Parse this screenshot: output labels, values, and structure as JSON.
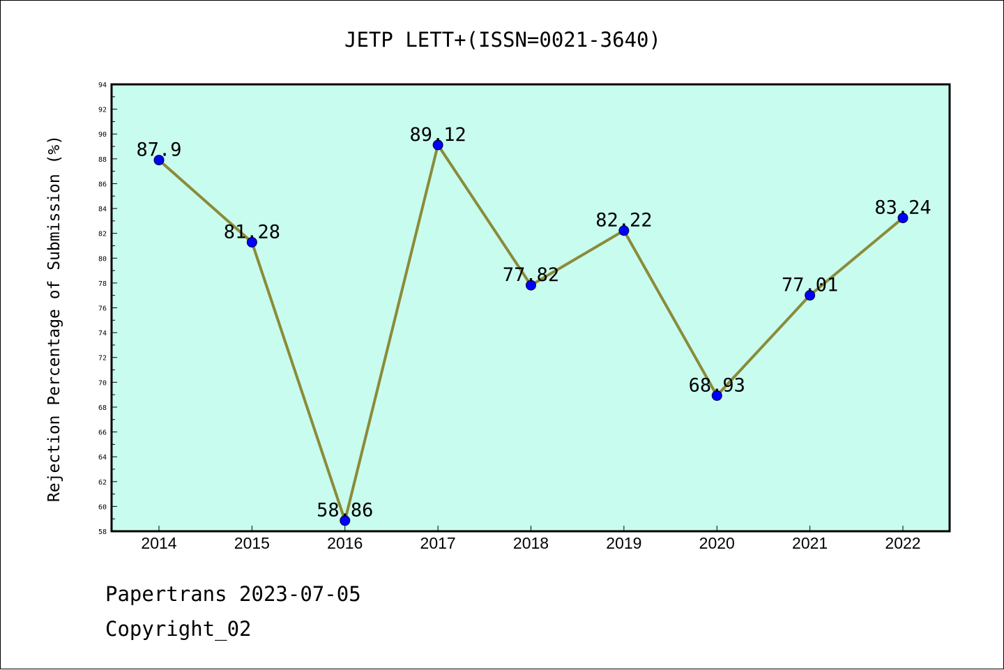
{
  "chart_data": {
    "type": "line",
    "title": "JETP LETT+(ISSN=0021-3640)",
    "xlabel": "",
    "ylabel": "Rejection Percentage of Submission (%)",
    "categories": [
      "2014",
      "2015",
      "2016",
      "2017",
      "2018",
      "2019",
      "2020",
      "2021",
      "2022"
    ],
    "values": [
      87.9,
      81.28,
      58.86,
      89.12,
      77.82,
      82.22,
      68.93,
      77.01,
      83.24
    ],
    "data_labels": [
      "87.9",
      "81.28",
      "58.86",
      "89.12",
      "77.82",
      "82.22",
      "68.93",
      "77.01",
      "83.24"
    ],
    "ylim": [
      58,
      94
    ],
    "yticks": [
      "58",
      "60",
      "62",
      "64",
      "66",
      "68",
      "70",
      "72",
      "74",
      "76",
      "78",
      "80",
      "82",
      "84",
      "86",
      "88",
      "90",
      "92",
      "94"
    ],
    "grid": false,
    "legend": "none",
    "colors": {
      "plot_background": "#c8fcee",
      "line": "#8b8b3a",
      "marker": "#0000ff",
      "axis": "#000000"
    }
  },
  "footer": {
    "line1": "Papertrans 2023-07-05",
    "line2": "Copyright_02"
  }
}
